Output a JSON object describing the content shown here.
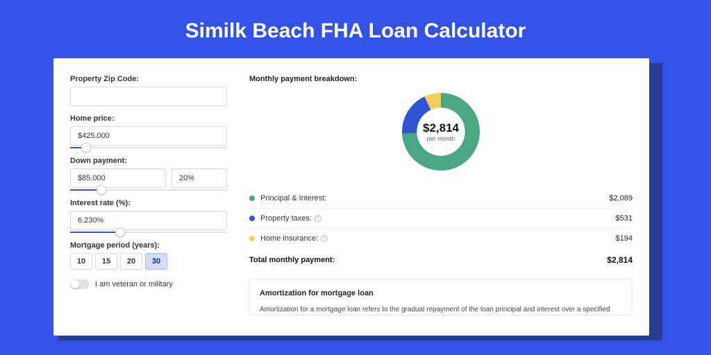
{
  "page_title": "Similk Beach FHA Loan Calculator",
  "colors": {
    "page_bg": "#3353e6",
    "shadow": "#273b90",
    "card_bg": "#ffffff",
    "slider_fill": "#3353e6",
    "period_active_bg": "#d2dcff",
    "period_active_border": "#a8b8f0"
  },
  "inputs": {
    "zip_label": "Property Zip Code:",
    "zip_value": "",
    "home_price_label": "Home price:",
    "home_price_value": "$425,000",
    "home_price_slider_pct": 10,
    "down_label": "Down payment:",
    "down_value": "$85,000",
    "down_pct_value": "20%",
    "down_slider_pct": 20,
    "rate_label": "Interest rate (%):",
    "rate_value": "6.230%",
    "rate_slider_pct": 32,
    "period_label": "Mortgage period (years):",
    "periods": [
      "10",
      "15",
      "20",
      "30"
    ],
    "period_active": "30",
    "veteran_label": "I am veteran or military"
  },
  "breakdown": {
    "title": "Monthly payment breakdown:",
    "center_value": "$2,814",
    "center_sub": "per month",
    "donut": {
      "type": "donut",
      "inner_radius_pct": 62,
      "background_color": "#ffffff",
      "slices": [
        {
          "label": "Principal & Interest:",
          "value": "$2,089",
          "pct": 74.2,
          "color": "#4aa786",
          "has_info": false
        },
        {
          "label": "Property taxes:",
          "value": "$531",
          "pct": 18.9,
          "color": "#2f55d4",
          "has_info": true
        },
        {
          "label": "Home insurance:",
          "value": "$194",
          "pct": 6.9,
          "color": "#f2cf5b",
          "has_info": true
        }
      ]
    },
    "total_label": "Total monthly payment:",
    "total_value": "$2,814"
  },
  "amortization": {
    "title": "Amortization for mortgage loan",
    "text": "Amortization for a mortgage loan refers to the gradual repayment of the loan principal and interest over a specified"
  }
}
